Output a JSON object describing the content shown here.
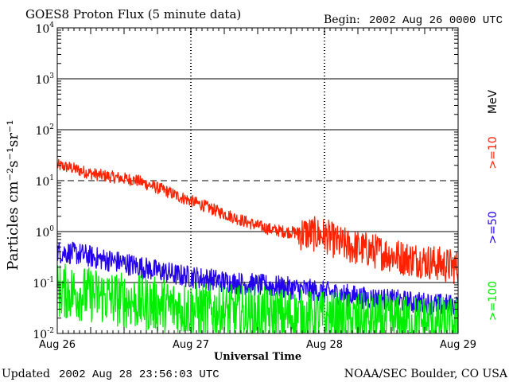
{
  "chart_data": {
    "type": "line",
    "title": "GOES8 Proton Flux (5 minute data)",
    "begin_label": "Begin:",
    "begin_value": "2002 Aug 26 0000 UTC",
    "xlabel": "Universal Time",
    "ylabel": "Particles cm⁻²s⁻¹sr⁻¹",
    "y_scale": "log",
    "ylim": [
      0.01,
      10000
    ],
    "x_range_days": [
      0,
      3
    ],
    "x_tick_labels": [
      "Aug 26",
      "Aug 27",
      "Aug 28",
      "Aug 29"
    ],
    "y_tick_labels": [
      {
        "base": "10",
        "exp": "-2"
      },
      {
        "base": "10",
        "exp": "-1"
      },
      {
        "base": "10",
        "exp": "0"
      },
      {
        "base": "10",
        "exp": "1"
      },
      {
        "base": "10",
        "exp": "2"
      },
      {
        "base": "10",
        "exp": "3"
      },
      {
        "base": "10",
        "exp": "4"
      }
    ],
    "units_label": "MeV",
    "series": [
      {
        "name": ">=10",
        "color": "#ff2200",
        "x": [
          0,
          0.1,
          0.2,
          0.3,
          0.4,
          0.5,
          0.6,
          0.7,
          0.8,
          0.9,
          1.0,
          1.1,
          1.2,
          1.3,
          1.4,
          1.5,
          1.6,
          1.7,
          1.8,
          1.9,
          2.0,
          2.1,
          2.2,
          2.3,
          2.4,
          2.5,
          2.6,
          2.7,
          2.8,
          2.9,
          3.0
        ],
        "values": [
          20,
          18,
          15,
          13,
          12,
          11,
          10,
          8,
          6.5,
          5,
          4,
          3.2,
          2.5,
          2,
          1.6,
          1.3,
          1.1,
          1.0,
          0.95,
          0.9,
          0.85,
          0.6,
          0.5,
          0.45,
          0.4,
          0.35,
          0.3,
          0.28,
          0.25,
          0.22,
          0.2
        ]
      },
      {
        "name": ">=50",
        "color": "#2200ee",
        "x": [
          0,
          0.1,
          0.2,
          0.3,
          0.4,
          0.5,
          0.6,
          0.7,
          0.8,
          0.9,
          1.0,
          1.1,
          1.2,
          1.3,
          1.4,
          1.5,
          1.6,
          1.7,
          1.8,
          1.9,
          2.0,
          2.1,
          2.2,
          2.3,
          2.4,
          2.5,
          2.6,
          2.7,
          2.8,
          2.9,
          3.0
        ],
        "values": [
          0.4,
          0.38,
          0.35,
          0.3,
          0.27,
          0.24,
          0.21,
          0.18,
          0.16,
          0.14,
          0.13,
          0.12,
          0.11,
          0.1,
          0.095,
          0.09,
          0.085,
          0.08,
          0.075,
          0.07,
          0.065,
          0.06,
          0.055,
          0.05,
          0.048,
          0.045,
          0.042,
          0.04,
          0.038,
          0.036,
          0.035
        ]
      },
      {
        "name": ">=100",
        "color": "#00ee00",
        "x": [
          0,
          0.1,
          0.2,
          0.3,
          0.4,
          0.5,
          0.6,
          0.7,
          0.8,
          0.9,
          1.0,
          1.1,
          1.2,
          1.3,
          1.4,
          1.5,
          1.6,
          1.7,
          1.8,
          1.9,
          2.0,
          2.1,
          2.2,
          2.3,
          2.4,
          2.5,
          2.6,
          2.7,
          2.8,
          2.9,
          3.0
        ],
        "values": [
          0.07,
          0.065,
          0.06,
          0.055,
          0.05,
          0.045,
          0.04,
          0.038,
          0.035,
          0.032,
          0.03,
          0.028,
          0.027,
          0.026,
          0.025,
          0.024,
          0.023,
          0.022,
          0.021,
          0.02,
          0.02,
          0.019,
          0.018,
          0.018,
          0.017,
          0.017,
          0.016,
          0.016,
          0.016,
          0.015,
          0.015
        ]
      }
    ]
  },
  "footer": {
    "updated_label": "Updated",
    "updated_value": "2002 Aug 28 23:56:03 UTC",
    "credit": "NOAA/SEC Boulder, CO USA"
  }
}
